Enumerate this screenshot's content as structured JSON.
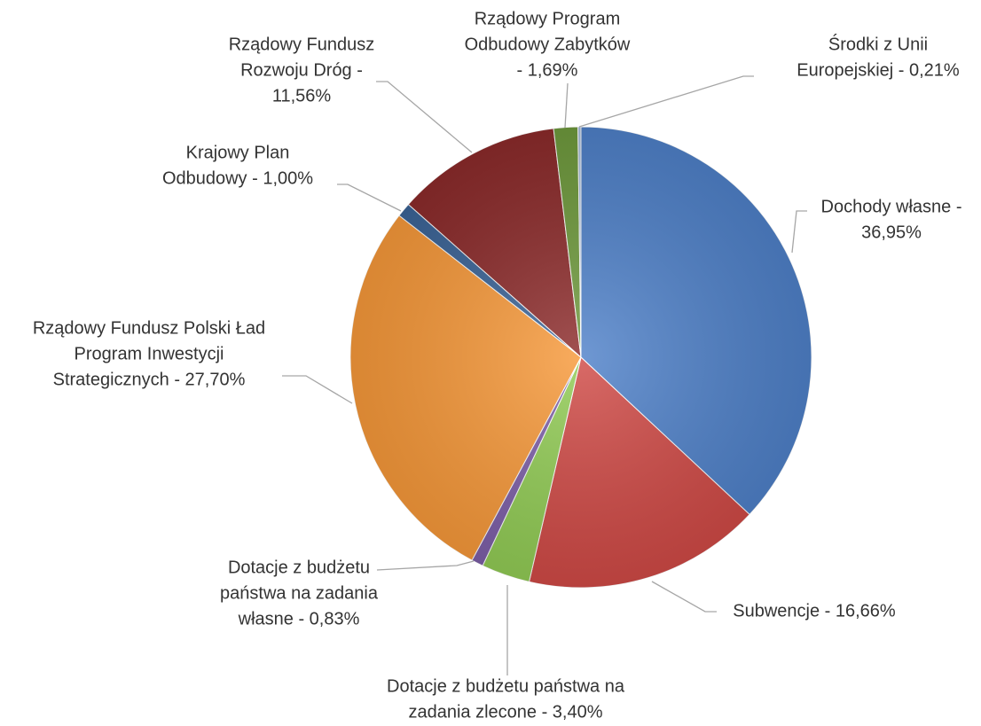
{
  "chart_data": {
    "type": "pie",
    "values": [
      36.95,
      16.66,
      3.4,
      0.83,
      27.7,
      1.0,
      11.56,
      1.69,
      0.21
    ],
    "value_labels": [
      [
        "Dochody własne -",
        "36,95%"
      ],
      [
        "Subwencje - 16,66%"
      ],
      [
        "Dotacje z budżetu państwa na",
        "zadania zlecone - 3,40%"
      ],
      [
        "Dotacje z budżetu",
        "państwa na zadania",
        "własne - 0,83%"
      ],
      [
        "Rządowy Fundusz Polski Ład",
        "Program Inwestycji",
        "Strategicznych - 27,70%"
      ],
      [
        "Krajowy Plan",
        "Odbudowy - 1,00%"
      ],
      [
        "Rządowy Fundusz",
        "Rozwoju Dróg -",
        "11,56%"
      ],
      [
        "Rządowy Program",
        "Odbudowy Zabytków",
        "- 1,69%"
      ],
      [
        "Środki z Unii",
        "Europejskiej - 0,21%"
      ]
    ],
    "colors": [
      "#4f81c9",
      "#d04a46",
      "#92cc55",
      "#7d5fa8",
      "#f7993a",
      "#3b6497",
      "#8c2b2b",
      "#6f9a3d",
      "#a9c0df"
    ]
  }
}
